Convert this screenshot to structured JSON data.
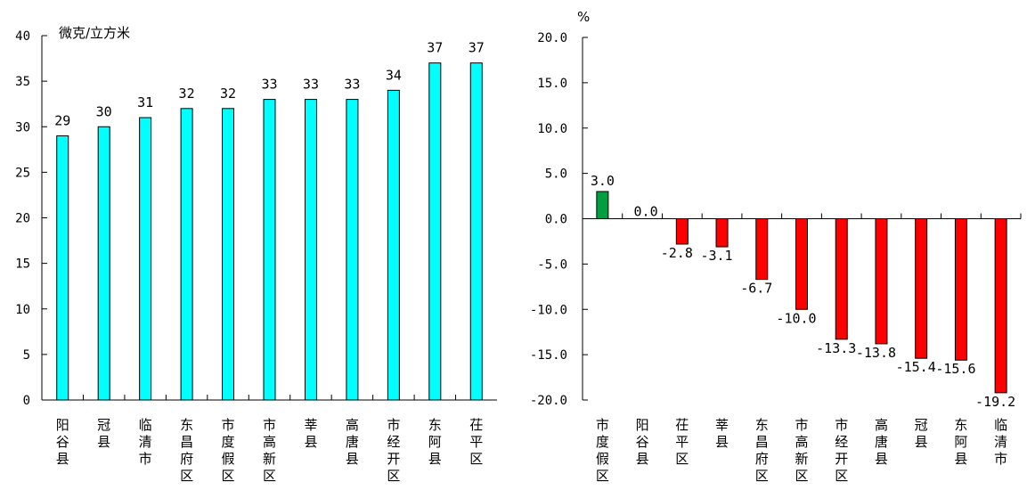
{
  "chart_data": [
    {
      "type": "bar",
      "ylabel": "微克/立方米",
      "ylim": [
        0,
        40
      ],
      "yticks": [
        "0",
        "5",
        "10",
        "15",
        "20",
        "25",
        "30",
        "35",
        "40"
      ],
      "categories": [
        "阳谷县",
        "冠县",
        "临清市",
        "东昌府区",
        "市度假区",
        "市高新区",
        "莘县",
        "高唐县",
        "市经开区",
        "东阿县",
        "茌平区"
      ],
      "values": [
        29,
        30,
        31,
        32,
        32,
        33,
        33,
        33,
        34,
        37,
        37
      ],
      "value_labels": [
        "29",
        "30",
        "31",
        "32",
        "32",
        "33",
        "33",
        "33",
        "34",
        "37",
        "37"
      ],
      "colors": {
        "bar": "#00ffff"
      }
    },
    {
      "type": "bar",
      "ylabel": "%",
      "ylim": [
        -20,
        20
      ],
      "yticks": [
        "20.0",
        "15.0",
        "10.0",
        "5.0",
        "0.0",
        "-5.0",
        "-10.0",
        "-15.0",
        "-20.0"
      ],
      "categories": [
        "市度假区",
        "阳谷县",
        "茌平区",
        "莘县",
        "东昌府区",
        "市高新区",
        "市经开区",
        "高唐县",
        "冠县",
        "东阿县",
        "临清市"
      ],
      "values": [
        3.0,
        0.0,
        -2.8,
        -3.1,
        -6.7,
        -10.0,
        -13.3,
        -13.8,
        -15.4,
        -15.6,
        -19.2
      ],
      "value_labels": [
        "3.0",
        "0.0",
        "-2.8",
        "-3.1",
        "-6.7",
        "-10.0",
        "-13.3",
        "-13.8",
        "-15.4",
        "-15.6",
        "-19.2"
      ],
      "colors": {
        "positive": "#00a040",
        "negative": "#ff0000"
      }
    }
  ]
}
